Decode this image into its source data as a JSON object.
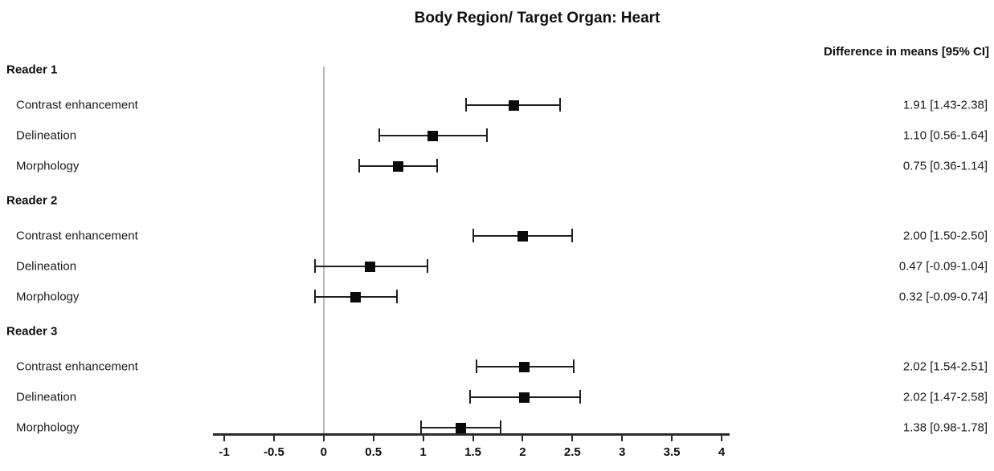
{
  "chart_data": {
    "type": "scatter",
    "variant": "forest-plot",
    "title": "Body Region/ Target Organ: Heart",
    "value_column_header": "Difference in means [95% CI]",
    "x_axis": {
      "min": -1,
      "max": 4,
      "tick_step": 0.5,
      "tick_values": [
        -1,
        -0.5,
        0,
        0.5,
        1,
        1.5,
        2,
        2.5,
        3,
        3.5,
        4
      ],
      "tick_labels": [
        "-1",
        "-0.5",
        "0",
        "0.5",
        "1",
        "1.5",
        "2",
        "2.5",
        "3",
        "3.5",
        "4"
      ],
      "reference_line_value": 0,
      "grid": false
    },
    "legend_position": "none",
    "groups": [
      {
        "label": "Reader 1",
        "rows": [
          {
            "label": "Contrast enhancement",
            "mean": 1.91,
            "ci_low": 1.43,
            "ci_high": 2.38,
            "display": "1.91 [1.43-2.38]"
          },
          {
            "label": "Delineation",
            "mean": 1.1,
            "ci_low": 0.56,
            "ci_high": 1.64,
            "display": "1.10 [0.56-1.64]"
          },
          {
            "label": "Morphology",
            "mean": 0.75,
            "ci_low": 0.36,
            "ci_high": 1.14,
            "display": "0.75 [0.36-1.14]"
          }
        ]
      },
      {
        "label": "Reader 2",
        "rows": [
          {
            "label": "Contrast enhancement",
            "mean": 2.0,
            "ci_low": 1.5,
            "ci_high": 2.5,
            "display": "2.00 [1.50-2.50]"
          },
          {
            "label": "Delineation",
            "mean": 0.47,
            "ci_low": -0.09,
            "ci_high": 1.04,
            "display": "0.47 [-0.09-1.04]"
          },
          {
            "label": "Morphology",
            "mean": 0.32,
            "ci_low": -0.09,
            "ci_high": 0.74,
            "display": "0.32 [-0.09-0.74]"
          }
        ]
      },
      {
        "label": "Reader 3",
        "rows": [
          {
            "label": "Contrast enhancement",
            "mean": 2.02,
            "ci_low": 1.54,
            "ci_high": 2.51,
            "display": "2.02 [1.54-2.51]"
          },
          {
            "label": "Delineation",
            "mean": 2.02,
            "ci_low": 1.47,
            "ci_high": 2.58,
            "display": "2.02 [1.47-2.58]"
          },
          {
            "label": "Morphology",
            "mean": 1.38,
            "ci_low": 0.98,
            "ci_high": 1.78,
            "display": "1.38 [0.98-1.78]"
          }
        ]
      }
    ],
    "colors": {
      "marker": "#0a0a0a",
      "error_bar": "#1f1f1f",
      "axis": "#2b2b2b",
      "reference_line": "#b8b8b8",
      "text": "#111111",
      "background": "#ffffff"
    }
  }
}
